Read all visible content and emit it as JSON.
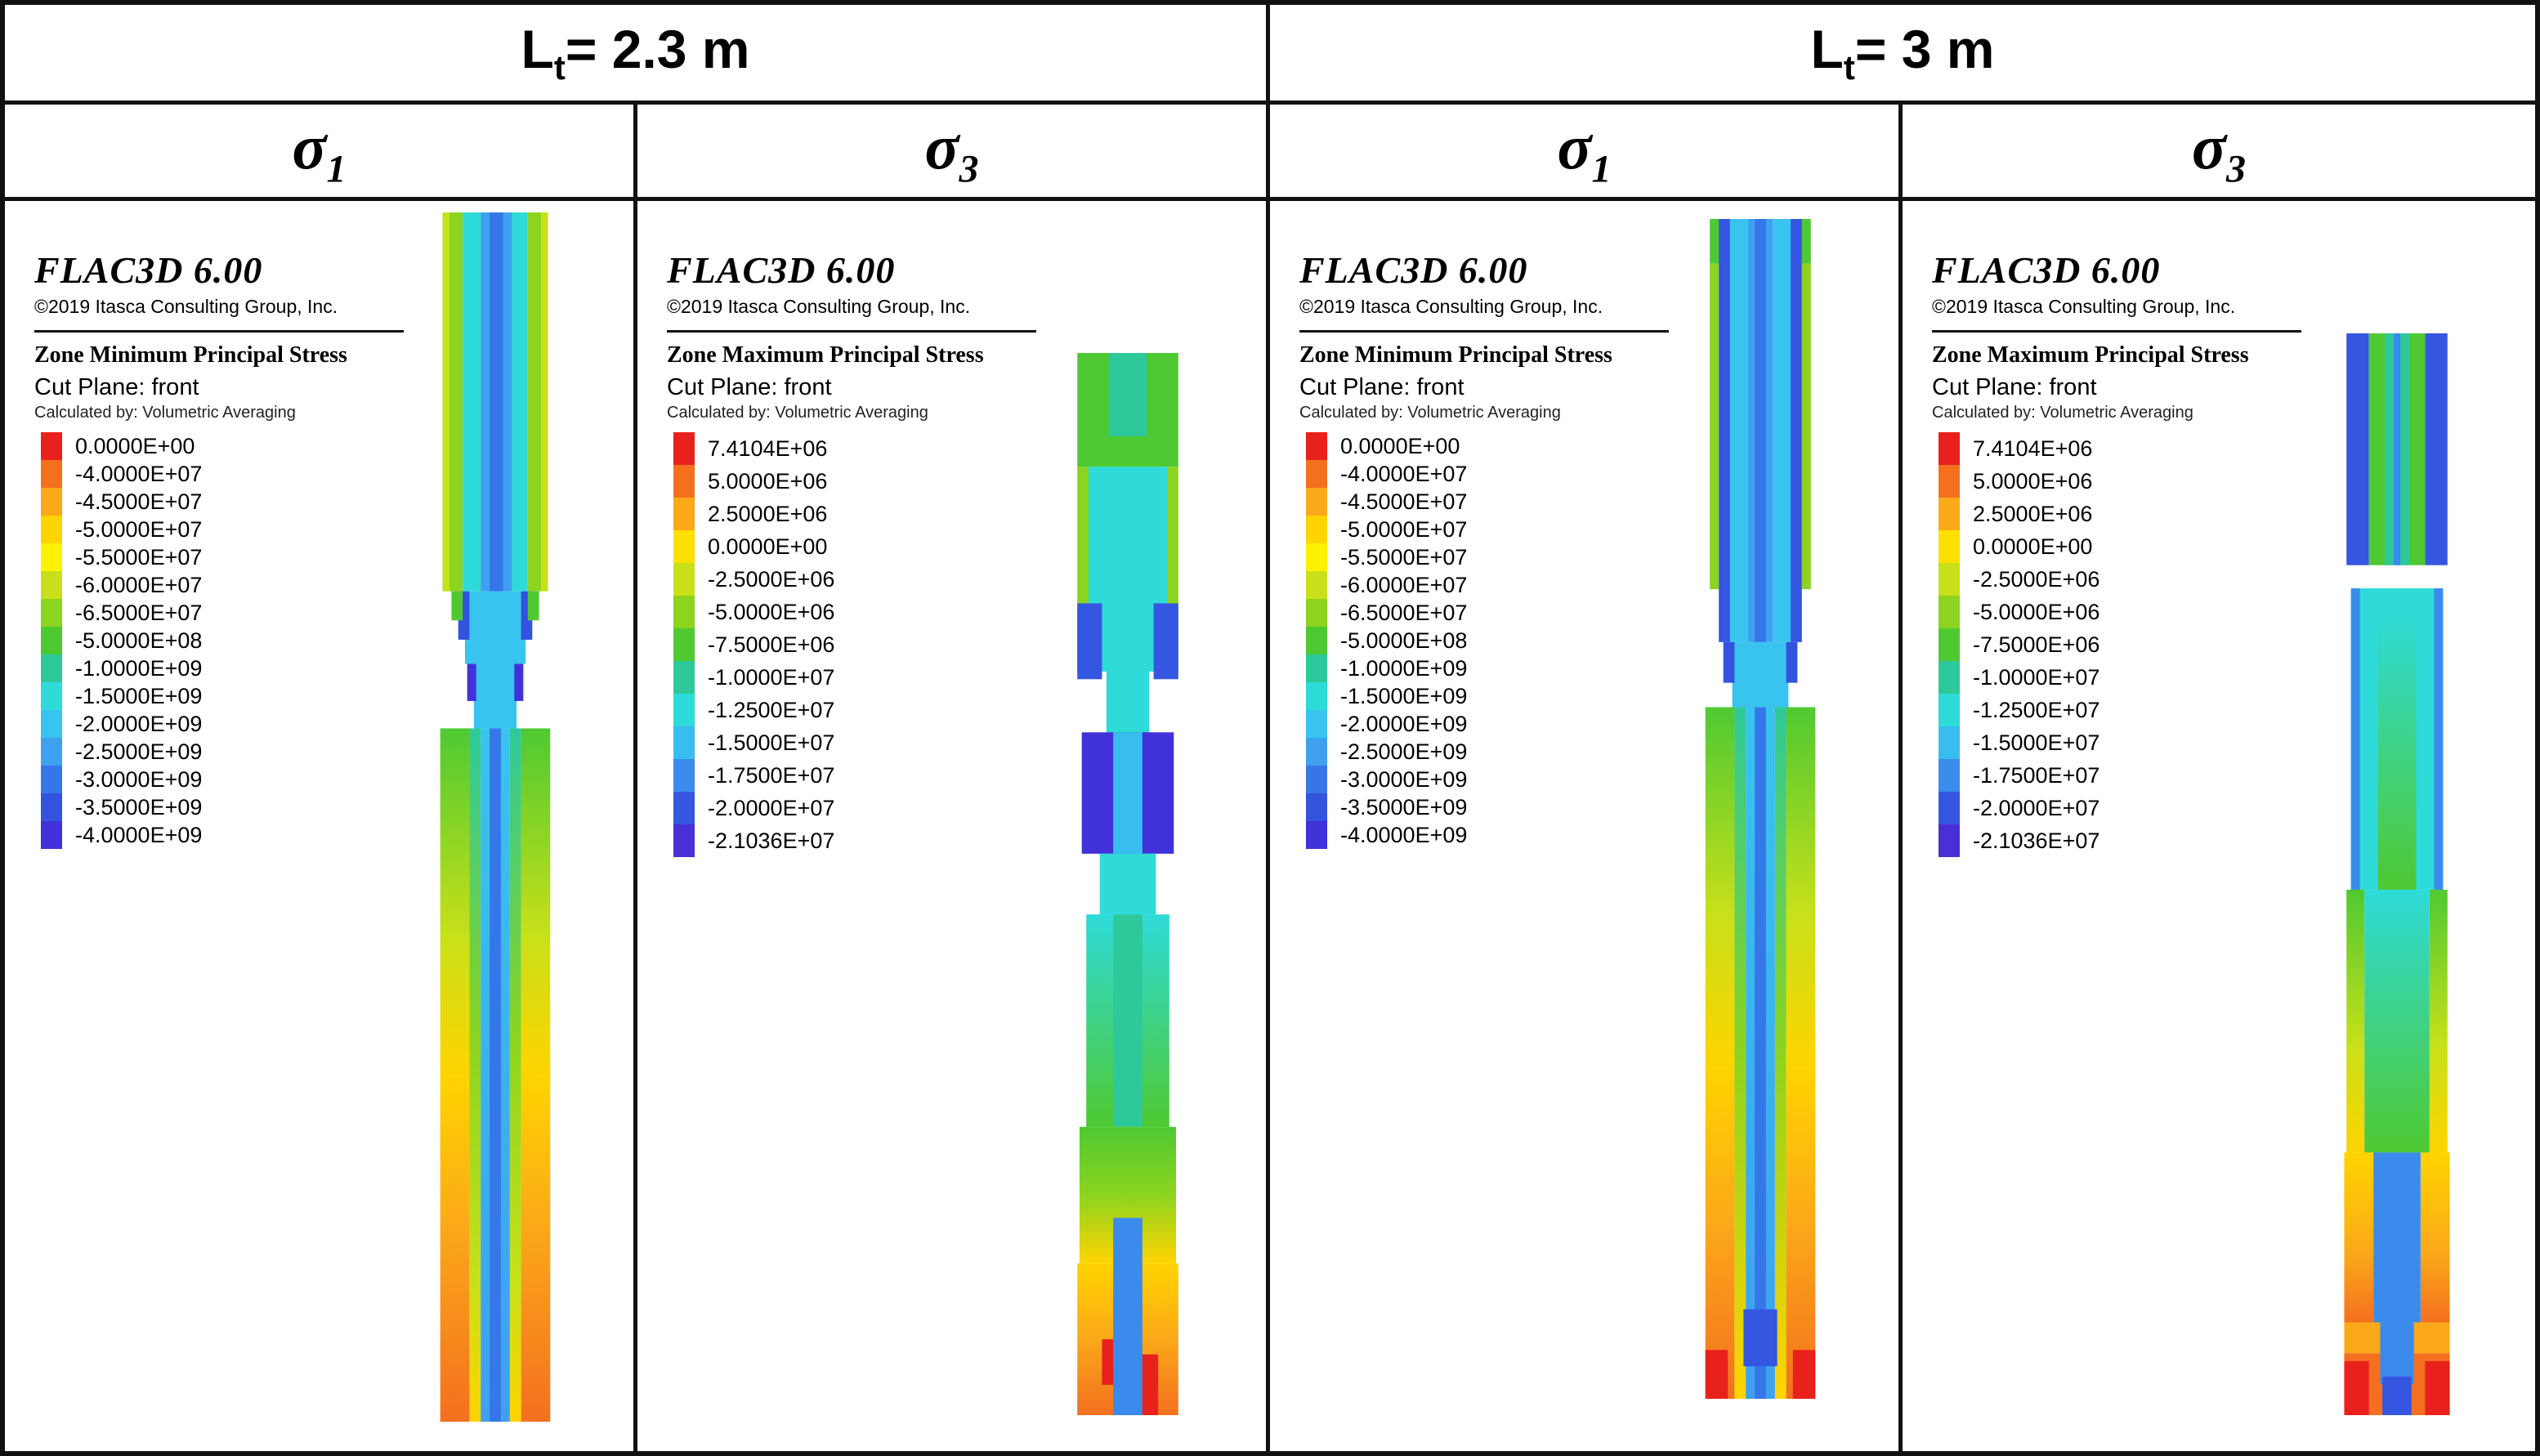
{
  "header": {
    "groups": [
      {
        "prefix": "L",
        "sub": "t",
        "suffix": "= 2.3 m"
      },
      {
        "prefix": "L",
        "sub": "t",
        "suffix": "= 3 m"
      }
    ],
    "columns": [
      {
        "symbol": "σ",
        "sub": "1"
      },
      {
        "symbol": "σ",
        "sub": "3"
      },
      {
        "symbol": "σ",
        "sub": "1"
      },
      {
        "symbol": "σ",
        "sub": "3"
      }
    ]
  },
  "panels": [
    {
      "id": "lt2.3-sigma1",
      "app_title": "FLAC3D 6.00",
      "copyright": "©2019 Itasca Consulting Group, Inc.",
      "legend_title": "Zone Minimum Principal Stress",
      "cut_plane": "Cut Plane: front",
      "calculated_by": "Calculated by: Volumetric Averaging",
      "legend": [
        {
          "color": "#e8211d",
          "label": "0.0000E+00"
        },
        {
          "color": "#f4701f",
          "label": "-4.0000E+07"
        },
        {
          "color": "#fba819",
          "label": "-4.5000E+07"
        },
        {
          "color": "#ffd400",
          "label": "-5.0000E+07"
        },
        {
          "color": "#fff200",
          "label": "-5.5000E+07"
        },
        {
          "color": "#c8e019",
          "label": "-6.0000E+07"
        },
        {
          "color": "#8cd41f",
          "label": "-6.5000E+07"
        },
        {
          "color": "#4fc932",
          "label": "-5.0000E+08"
        },
        {
          "color": "#2ec99b",
          "label": "-1.0000E+09"
        },
        {
          "color": "#2edbd8",
          "label": "-1.5000E+09"
        },
        {
          "color": "#38c4ee",
          "label": "-2.0000E+09"
        },
        {
          "color": "#3fa0f0",
          "label": "-2.5000E+09"
        },
        {
          "color": "#3577e8",
          "label": "-3.0000E+09"
        },
        {
          "color": "#3353de",
          "label": "-3.5000E+09"
        },
        {
          "color": "#4031d8",
          "label": "-4.0000E+09"
        }
      ]
    },
    {
      "id": "lt2.3-sigma3",
      "app_title": "FLAC3D 6.00",
      "copyright": "©2019 Itasca Consulting Group, Inc.",
      "legend_title": "Zone Maximum Principal Stress",
      "cut_plane": "Cut Plane: front",
      "calculated_by": "Calculated by: Volumetric Averaging",
      "legend": [
        {
          "color": "#e8211d",
          "label": "7.4104E+06"
        },
        {
          "color": "#f4701f",
          "label": "5.0000E+06"
        },
        {
          "color": "#fba819",
          "label": "2.5000E+06"
        },
        {
          "color": "#ffe000",
          "label": "0.0000E+00"
        },
        {
          "color": "#c8e019",
          "label": "-2.5000E+06"
        },
        {
          "color": "#8cd41f",
          "label": "-5.0000E+06"
        },
        {
          "color": "#4fc932",
          "label": "-7.5000E+06"
        },
        {
          "color": "#2ec99b",
          "label": "-1.0000E+07"
        },
        {
          "color": "#2edbd8",
          "label": "-1.2500E+07"
        },
        {
          "color": "#38bdee",
          "label": "-1.5000E+07"
        },
        {
          "color": "#3a8bec",
          "label": "-1.7500E+07"
        },
        {
          "color": "#3556e0",
          "label": "-2.0000E+07"
        },
        {
          "color": "#4a2fd6",
          "label": "-2.1036E+07"
        }
      ]
    },
    {
      "id": "lt3-sigma1",
      "app_title": "FLAC3D 6.00",
      "copyright": "©2019 Itasca Consulting Group, Inc.",
      "legend_title": "Zone Minimum Principal Stress",
      "cut_plane": "Cut Plane: front",
      "calculated_by": "Calculated by: Volumetric Averaging",
      "legend": [
        {
          "color": "#e8211d",
          "label": "0.0000E+00"
        },
        {
          "color": "#f4701f",
          "label": "-4.0000E+07"
        },
        {
          "color": "#fba819",
          "label": "-4.5000E+07"
        },
        {
          "color": "#ffd400",
          "label": "-5.0000E+07"
        },
        {
          "color": "#fff200",
          "label": "-5.5000E+07"
        },
        {
          "color": "#c8e019",
          "label": "-6.0000E+07"
        },
        {
          "color": "#8cd41f",
          "label": "-6.5000E+07"
        },
        {
          "color": "#4fc932",
          "label": "-5.0000E+08"
        },
        {
          "color": "#2ec99b",
          "label": "-1.0000E+09"
        },
        {
          "color": "#2edbd8",
          "label": "-1.5000E+09"
        },
        {
          "color": "#38c4ee",
          "label": "-2.0000E+09"
        },
        {
          "color": "#3fa0f0",
          "label": "-2.5000E+09"
        },
        {
          "color": "#3577e8",
          "label": "-3.0000E+09"
        },
        {
          "color": "#3353de",
          "label": "-3.5000E+09"
        },
        {
          "color": "#4031d8",
          "label": "-4.0000E+09"
        }
      ]
    },
    {
      "id": "lt3-sigma3",
      "app_title": "FLAC3D 6.00",
      "copyright": "©2019 Itasca Consulting Group, Inc.",
      "legend_title": "Zone Maximum Principal Stress",
      "cut_plane": "Cut Plane: front",
      "calculated_by": "Calculated by: Volumetric Averaging",
      "legend": [
        {
          "color": "#e8211d",
          "label": "7.4104E+06"
        },
        {
          "color": "#f4701f",
          "label": "5.0000E+06"
        },
        {
          "color": "#fba819",
          "label": "2.5000E+06"
        },
        {
          "color": "#ffe000",
          "label": "0.0000E+00"
        },
        {
          "color": "#c8e019",
          "label": "-2.5000E+06"
        },
        {
          "color": "#8cd41f",
          "label": "-5.0000E+06"
        },
        {
          "color": "#4fc932",
          "label": "-7.5000E+06"
        },
        {
          "color": "#2ec99b",
          "label": "-1.0000E+07"
        },
        {
          "color": "#2edbd8",
          "label": "-1.2500E+07"
        },
        {
          "color": "#38bdee",
          "label": "-1.5000E+07"
        },
        {
          "color": "#3a8bec",
          "label": "-1.7500E+07"
        },
        {
          "color": "#3556e0",
          "label": "-2.0000E+07"
        },
        {
          "color": "#4a2fd6",
          "label": "-2.1036E+07"
        }
      ]
    }
  ]
}
